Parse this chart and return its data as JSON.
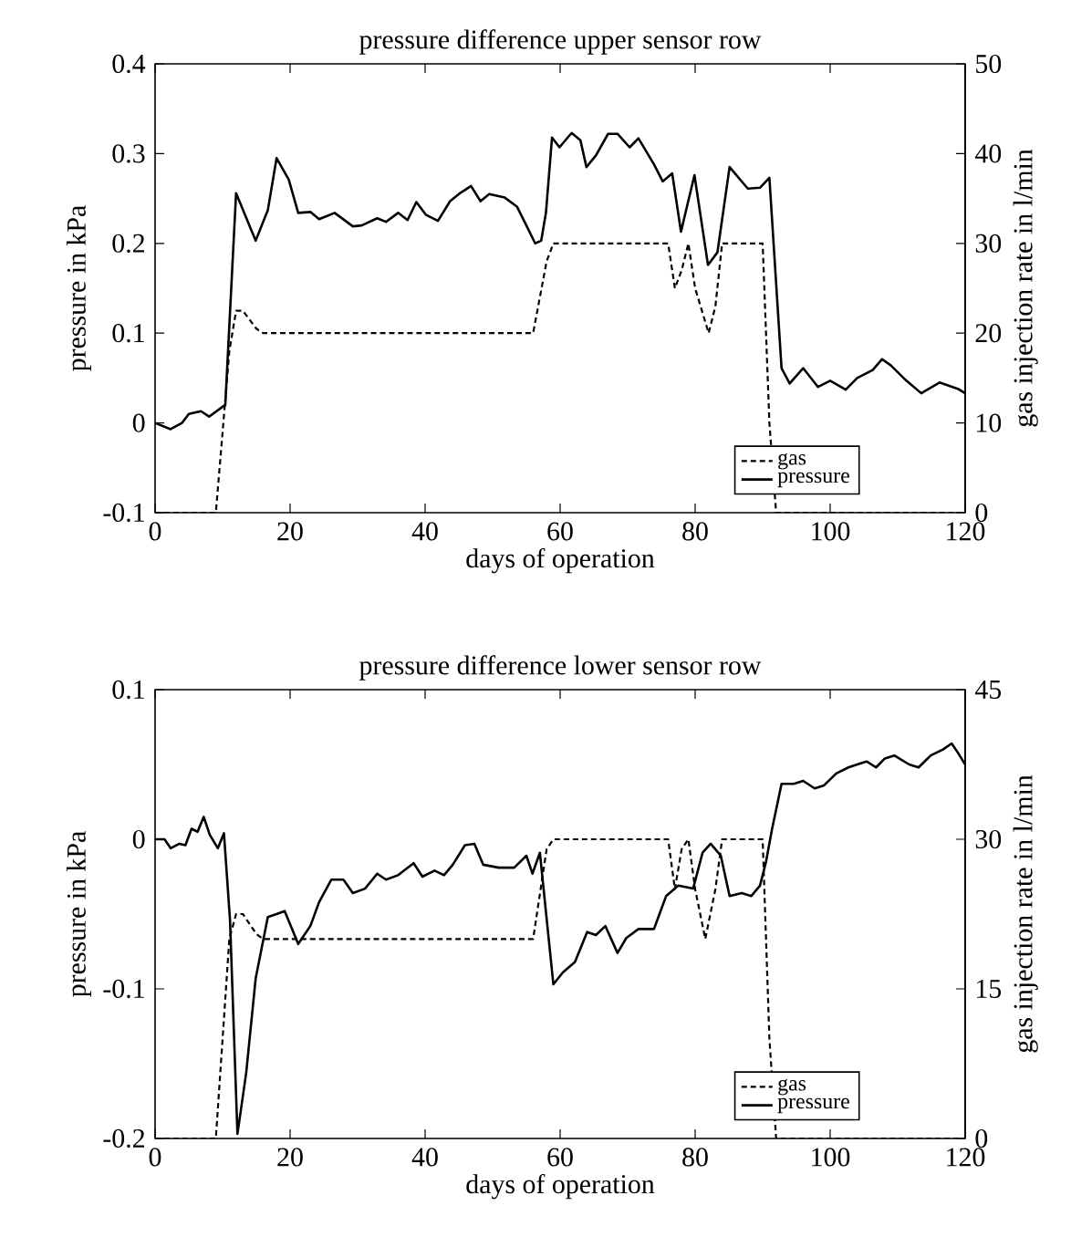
{
  "chart_data": [
    {
      "type": "line",
      "title": "pressure difference upper sensor row",
      "xlabel": "days of operation",
      "ylabel": "pressure in kPa",
      "y2label": "gas injection rate in l/min",
      "xlim": [
        0,
        120
      ],
      "xticks": [
        0,
        20,
        40,
        60,
        80,
        100,
        120
      ],
      "ylim": [
        -0.1,
        0.4
      ],
      "yticks": [
        -0.1,
        0,
        0.1,
        0.2,
        0.3,
        0.4
      ],
      "y2lim": [
        0,
        50
      ],
      "y2ticks": [
        0,
        10,
        20,
        30,
        40,
        50
      ],
      "legend": "bottom right",
      "series": [
        {
          "name": "gas",
          "color": "#000000",
          "axis": "y2",
          "line_style": "dashed",
          "x": [
            0,
            9,
            11,
            12,
            13,
            15,
            16,
            56,
            58,
            59,
            76,
            77,
            78,
            79,
            80,
            82,
            83,
            84,
            90,
            91,
            92,
            120
          ],
          "values": [
            0,
            0,
            18,
            22.5,
            22.5,
            20.5,
            20,
            20,
            28,
            30,
            30,
            25,
            27,
            30,
            25,
            20,
            23,
            30,
            30,
            10,
            0,
            0
          ]
        },
        {
          "name": "pressure",
          "color": "#000000",
          "line_style": "solid",
          "x": [
            0,
            2.3,
            4,
            5,
            6.8,
            8,
            10,
            10.4,
            12,
            14.9,
            16.7,
            18,
            19.8,
            21.2,
            23,
            24.3,
            26.6,
            29.3,
            30.6,
            32.9,
            34.2,
            36,
            37.4,
            38.7,
            40.1,
            41.9,
            43.7,
            45,
            46.8,
            48.2,
            49.5,
            51.8,
            53.6,
            55,
            56.3,
            57.2,
            57.9,
            58.8,
            59.9,
            61.7,
            63,
            63.9,
            65.3,
            67.1,
            68.5,
            70.3,
            71.6,
            73.9,
            75.2,
            76.6,
            77.9,
            79.9,
            81.9,
            83.3,
            85.1,
            87.8,
            89.6,
            91,
            92.8,
            94,
            96,
            98.2,
            100,
            102.3,
            104,
            106.3,
            107.7,
            109,
            111.3,
            113.5,
            116.2,
            118.9,
            120
          ],
          "values": [
            0,
            -0.007,
            0,
            0.01,
            0.013,
            0.007,
            0.018,
            0.02,
            0.256,
            0.203,
            0.237,
            0.295,
            0.271,
            0.234,
            0.235,
            0.227,
            0.234,
            0.219,
            0.22,
            0.228,
            0.224,
            0.234,
            0.226,
            0.246,
            0.232,
            0.225,
            0.247,
            0.255,
            0.264,
            0.247,
            0.255,
            0.251,
            0.241,
            0.22,
            0.2,
            0.203,
            0.234,
            0.318,
            0.307,
            0.323,
            0.315,
            0.285,
            0.298,
            0.322,
            0.322,
            0.307,
            0.317,
            0.288,
            0.269,
            0.278,
            0.213,
            0.276,
            0.176,
            0.19,
            0.285,
            0.261,
            0.262,
            0.273,
            0.061,
            0.044,
            0.061,
            0.04,
            0.047,
            0.037,
            0.05,
            0.059,
            0.071,
            0.064,
            0.047,
            0.033,
            0.045,
            0.038,
            0.033
          ]
        }
      ]
    },
    {
      "type": "line",
      "title": "pressure difference lower sensor row",
      "xlabel": "days of operation",
      "ylabel": "pressure in kPa",
      "y2label": "gas injection rate in l/min",
      "xlim": [
        0,
        120
      ],
      "xticks": [
        0,
        20,
        40,
        60,
        80,
        100,
        120
      ],
      "ylim": [
        -0.2,
        0.1
      ],
      "yticks": [
        -0.2,
        -0.1,
        0,
        0.1
      ],
      "y2lim": [
        0,
        45
      ],
      "y2ticks": [
        0,
        15,
        30,
        45
      ],
      "legend": "bottom right",
      "series": [
        {
          "name": "gas",
          "color": "#000000",
          "axis": "y2",
          "line_style": "dashed",
          "x": [
            0,
            9,
            11,
            12,
            13,
            15,
            16,
            56,
            58,
            59,
            76,
            77,
            78,
            79,
            80,
            81.5,
            83,
            84,
            90,
            91,
            92,
            120
          ],
          "values": [
            0,
            0,
            20,
            22.5,
            22.5,
            20.5,
            20,
            20,
            29,
            30,
            30,
            25,
            29,
            30,
            25,
            20,
            25,
            30,
            30,
            10,
            0,
            0
          ]
        },
        {
          "name": "pressure",
          "color": "#000000",
          "line_style": "solid",
          "x": [
            0,
            1.4,
            2.3,
            3.6,
            4.5,
            5.4,
            6.3,
            7.2,
            8.1,
            9.3,
            10.2,
            11.1,
            12.2,
            13.5,
            14.9,
            16.7,
            18,
            19.2,
            21.2,
            23,
            24.3,
            26.1,
            27.9,
            29.3,
            31.1,
            32.9,
            34.2,
            36,
            38.3,
            39.6,
            41.4,
            42.8,
            44.1,
            45.9,
            47.3,
            48.6,
            50.9,
            53.2,
            55,
            55.9,
            57,
            59,
            60.4,
            62.2,
            64,
            65.3,
            66.7,
            68.5,
            69.8,
            71.6,
            73.9,
            75.7,
            77.5,
            79.7,
            81.1,
            82.3,
            83.8,
            85.1,
            86.9,
            88.3,
            89.6,
            90.5,
            91.4,
            92.8,
            94.6,
            96,
            97.7,
            99.1,
            100.9,
            102.7,
            104,
            105.4,
            106.8,
            108.1,
            109.5,
            111.7,
            113.1,
            114.9,
            116.7,
            118,
            118.9,
            120
          ],
          "values": [
            0,
            0,
            -0.006,
            -0.003,
            -0.004,
            0.007,
            0.005,
            0.015,
            0.003,
            -0.006,
            0.004,
            -0.054,
            -0.197,
            -0.156,
            -0.093,
            -0.052,
            -0.05,
            -0.048,
            -0.07,
            -0.058,
            -0.042,
            -0.027,
            -0.027,
            -0.036,
            -0.033,
            -0.023,
            -0.027,
            -0.024,
            -0.016,
            -0.025,
            -0.021,
            -0.024,
            -0.017,
            -0.004,
            -0.003,
            -0.017,
            -0.019,
            -0.019,
            -0.011,
            -0.023,
            -0.009,
            -0.097,
            -0.089,
            -0.082,
            -0.062,
            -0.064,
            -0.058,
            -0.076,
            -0.066,
            -0.06,
            -0.06,
            -0.038,
            -0.031,
            -0.033,
            -0.009,
            -0.003,
            -0.011,
            -0.038,
            -0.036,
            -0.038,
            -0.031,
            -0.015,
            0.007,
            0.037,
            0.037,
            0.039,
            0.034,
            0.036,
            0.044,
            0.048,
            0.05,
            0.052,
            0.048,
            0.054,
            0.056,
            0.05,
            0.048,
            0.056,
            0.06,
            0.064,
            0.058,
            0.05
          ]
        }
      ]
    }
  ]
}
